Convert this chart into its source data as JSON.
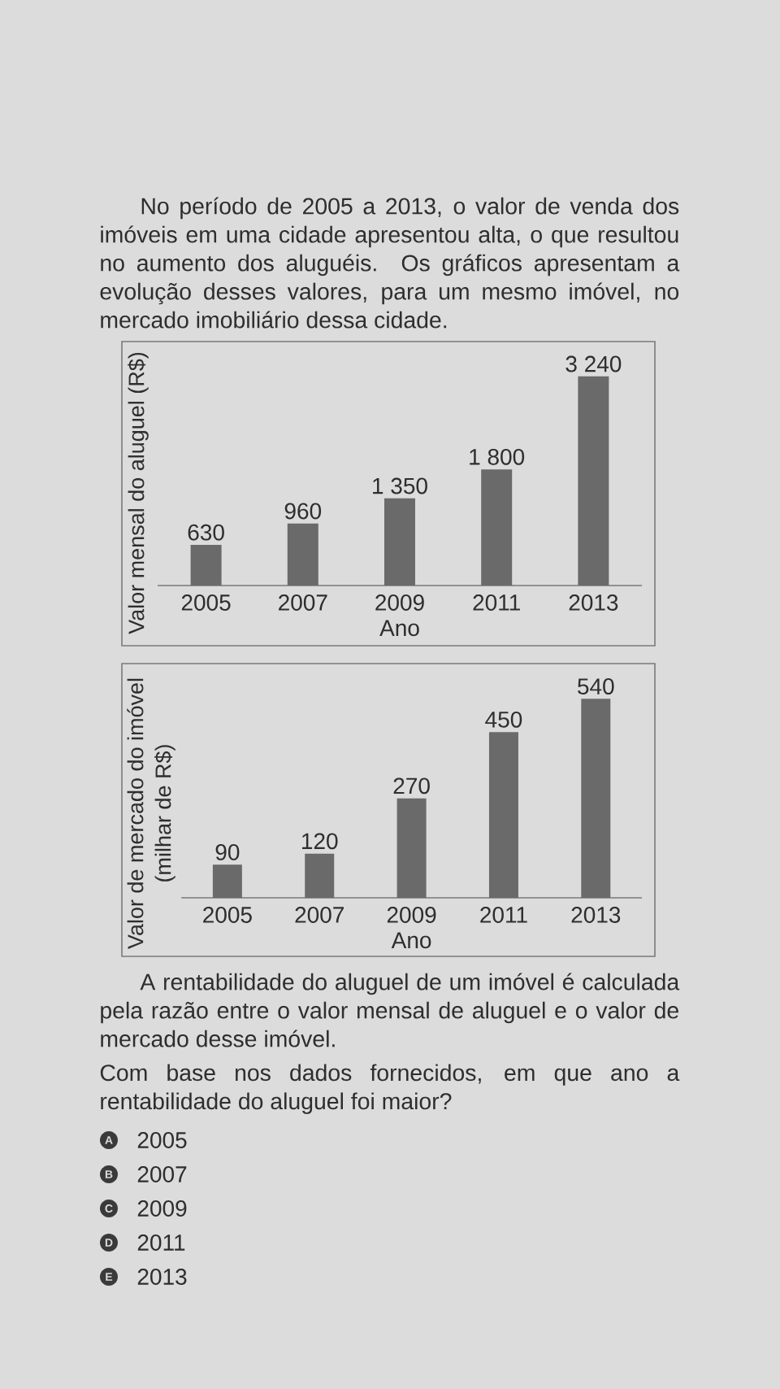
{
  "chart_data": [
    {
      "type": "bar",
      "categories": [
        "2005",
        "2007",
        "2009",
        "2011",
        "2013"
      ],
      "values": [
        630,
        960,
        1350,
        1800,
        3240
      ],
      "value_labels": [
        "630",
        "960",
        "1 350",
        "1 800",
        "3 240"
      ],
      "color": "#6a6a6a",
      "xlabel": "Ano",
      "ylabel": "Valor mensal do aluguel (R$)",
      "annotations": [
        "No período de 2005 a 2013, o valor de venda dos imóveis em uma cidade apresentou alta, o que resultou no aumento dos aluguéis. Os gráficos apresentam a evolução desses valores, para um mesmo imóvel, no mercado imobiliário dessa cidade."
      ]
    },
    {
      "type": "bar",
      "categories": [
        "2005",
        "2007",
        "2009",
        "2011",
        "2013"
      ],
      "values": [
        90,
        120,
        270,
        450,
        540
      ],
      "value_labels": [
        "90",
        "120",
        "270",
        "450",
        "540"
      ],
      "color": "#6a6a6a",
      "xlabel": "Ano",
      "ylabel": "Valor de mercado do imóvel (milhar de R$)",
      "annotations": [
        "A rentabilidade do aluguel de um imóvel é calculada pela razão entre o valor mensal de aluguel e o valor de mercado desse imóvel.",
        "Com base nos dados fornecidos, em que ano a rentabilidade do aluguel foi maior?",
        "A",
        "2005",
        "B",
        "2007",
        "C",
        "2009",
        "D",
        "2011",
        "E",
        "2013"
      ]
    }
  ]
}
